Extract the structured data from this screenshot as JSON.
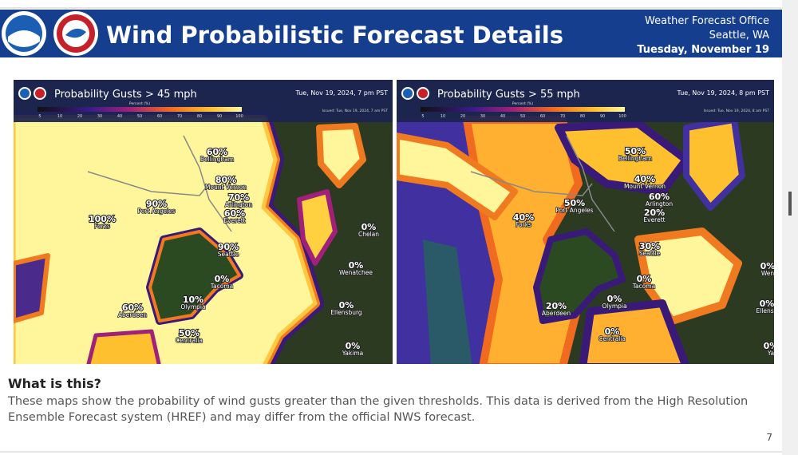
{
  "header": {
    "title": "Wind Probabilistic Forecast Details",
    "office": [
      "Weather Forecast Office",
      "Seattle, WA",
      "Tuesday, November 19"
    ]
  },
  "maps": [
    {
      "title": "Probability Gusts > 45 mph",
      "time": "Tue, Nov 19, 2024, 7 pm PST",
      "issued": "Issued: Tue, Nov 19, 2024, 7 am PST",
      "colorbar": {
        "label": "Percent (%)",
        "ticks": [
          "5",
          "10",
          "20",
          "30",
          "40",
          "50",
          "60",
          "70",
          "80",
          "90",
          "100"
        ]
      },
      "places": [
        {
          "value": "60%",
          "name": "Bellingham"
        },
        {
          "value": "80%",
          "name": "Mount Vernon"
        },
        {
          "value": "70%",
          "name": "Arlington"
        },
        {
          "value": "90%",
          "name": "Port Angeles"
        },
        {
          "value": "100%",
          "name": "Forks"
        },
        {
          "value": "60%",
          "name": "Everett"
        },
        {
          "value": "90%",
          "name": "Seattle"
        },
        {
          "value": "0%",
          "name": "Tacoma"
        },
        {
          "value": "10%",
          "name": "Olympia"
        },
        {
          "value": "60%",
          "name": "Aberdeen"
        },
        {
          "value": "50%",
          "name": "Centralia"
        },
        {
          "value": "0%",
          "name": "Chelan"
        },
        {
          "value": "0%",
          "name": "Wenatchee"
        },
        {
          "value": "0%",
          "name": "Ellensburg"
        },
        {
          "value": "0%",
          "name": "Yakima"
        }
      ]
    },
    {
      "title": "Probability Gusts > 55 mph",
      "time": "Tue, Nov 19, 2024, 8 pm PST",
      "issued": "Issued: Tue, Nov 19, 2024, 8 am PST",
      "colorbar": {
        "label": "Percent (%)",
        "ticks": [
          "5",
          "10",
          "20",
          "30",
          "40",
          "50",
          "60",
          "70",
          "80",
          "90",
          "100"
        ]
      },
      "places": [
        {
          "value": "50%",
          "name": "Bellingham"
        },
        {
          "value": "40%",
          "name": "Mount Vernon"
        },
        {
          "value": "60%",
          "name": "Arlington"
        },
        {
          "value": "50%",
          "name": "Port Angeles"
        },
        {
          "value": "40%",
          "name": "Forks"
        },
        {
          "value": "20%",
          "name": "Everett"
        },
        {
          "value": "30%",
          "name": "Seattle"
        },
        {
          "value": "0%",
          "name": "Tacoma"
        },
        {
          "value": "0%",
          "name": "Olympia"
        },
        {
          "value": "20%",
          "name": "Aberdeen"
        },
        {
          "value": "0%",
          "name": "Centralia"
        },
        {
          "value": "0%",
          "name": "Wen"
        },
        {
          "value": "0%",
          "name": "Ellensb"
        },
        {
          "value": "0%",
          "name": "Ya"
        }
      ]
    }
  ],
  "explainer": {
    "heading": "What is this?",
    "lines": [
      "These maps show the probability of wind gusts greater than the given thresholds. This data is derived from the High Resolution",
      "Ensemble Forecast system (HREF) and may differ from the official NWS forecast."
    ]
  },
  "page_number": "7"
}
